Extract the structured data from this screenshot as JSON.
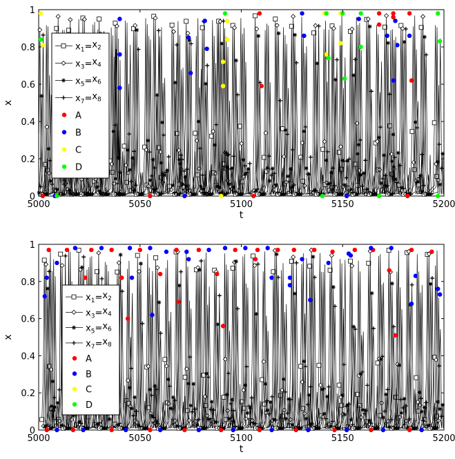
{
  "colors": {
    "line": "#000000",
    "A": "#ff0000",
    "B": "#0000ff",
    "C": "#ffff00",
    "D": "#00ff00"
  },
  "chart_data": [
    {
      "type": "line",
      "xlabel": "t",
      "ylabel": "x",
      "xlim": [
        5000,
        5200
      ],
      "ylim": [
        0,
        1
      ],
      "xticks": [
        "5000",
        "5050",
        "5100",
        "5150",
        "5200"
      ],
      "yticks": [
        "0",
        "0.2",
        "0.4",
        "0.6",
        "0.8",
        "1"
      ],
      "legend_placement": "upper-left",
      "legend": [
        {
          "base1": "x",
          "sub1": "1",
          "sep": "=",
          "base2": "x",
          "sub2": "2",
          "marker": "square"
        },
        {
          "base1": "x",
          "sub1": "3",
          "sep": "=",
          "base2": "x",
          "sub2": "4",
          "marker": "diamond"
        },
        {
          "base1": "x",
          "sub1": "5",
          "sep": "=",
          "base2": "x",
          "sub2": "6",
          "marker": "star"
        },
        {
          "base1": "x",
          "sub1": "7",
          "sep": "=",
          "base2": "x",
          "sub2": "8",
          "marker": "plus"
        },
        {
          "label": "A",
          "marker": "dot",
          "color": "A"
        },
        {
          "label": "B",
          "marker": "dot",
          "color": "B"
        },
        {
          "label": "C",
          "marker": "dot",
          "color": "C"
        },
        {
          "label": "D",
          "marker": "dot",
          "color": "D"
        }
      ],
      "peak_times": [
        5001,
        5005,
        5010,
        5013,
        5016,
        5021,
        5023,
        5028,
        5031,
        5037,
        5039,
        5044,
        5048,
        5054,
        5058,
        5061,
        5067,
        5070,
        5074,
        5079,
        5082,
        5087,
        5090,
        5093,
        5097,
        5101,
        5108,
        5113,
        5118,
        5122,
        5126,
        5131,
        5137,
        5142,
        5146,
        5150,
        5155,
        5158,
        5163,
        5168,
        5172,
        5175,
        5180,
        5186,
        5190,
        5197
      ],
      "event_points": [
        {
          "set": "A",
          "x": 5109,
          "y": 0.98
        },
        {
          "set": "A",
          "x": 5110,
          "y": 0.59
        },
        {
          "set": "A",
          "x": 5168,
          "y": 0.98
        },
        {
          "set": "A",
          "x": 5168,
          "y": 0.92
        },
        {
          "set": "A",
          "x": 5175,
          "y": 0.98
        },
        {
          "set": "A",
          "x": 5175,
          "y": 0.96
        },
        {
          "set": "A",
          "x": 5183,
          "y": 0.98
        },
        {
          "set": "A",
          "x": 5184,
          "y": 0.62
        },
        {
          "set": "B",
          "x": 5040,
          "y": 0.95
        },
        {
          "set": "B",
          "x": 5040,
          "y": 0.76
        },
        {
          "set": "B",
          "x": 5040,
          "y": 0.58
        },
        {
          "set": "B",
          "x": 5074,
          "y": 0.85
        },
        {
          "set": "B",
          "x": 5075,
          "y": 0.66
        },
        {
          "set": "B",
          "x": 5082,
          "y": 0.94
        },
        {
          "set": "B",
          "x": 5083,
          "y": 0.79
        },
        {
          "set": "B",
          "x": 5130,
          "y": 0.98
        },
        {
          "set": "B",
          "x": 5131,
          "y": 0.86
        },
        {
          "set": "B",
          "x": 5158,
          "y": 0.95
        },
        {
          "set": "B",
          "x": 5172,
          "y": 0.86
        },
        {
          "set": "B",
          "x": 5176,
          "y": 0.94
        },
        {
          "set": "B",
          "x": 5177,
          "y": 0.81
        },
        {
          "set": "B",
          "x": 5175,
          "y": 0.62
        },
        {
          "set": "B",
          "x": 5183,
          "y": 0.86
        },
        {
          "set": "C",
          "x": 5001,
          "y": 0.98
        },
        {
          "set": "C",
          "x": 5002,
          "y": 0.81
        },
        {
          "set": "C",
          "x": 5091,
          "y": 0.72
        },
        {
          "set": "C",
          "x": 5091,
          "y": 0.59
        },
        {
          "set": "C",
          "x": 5093,
          "y": 0.94
        },
        {
          "set": "C",
          "x": 5093,
          "y": 0.84
        },
        {
          "set": "C",
          "x": 5141,
          "y": 0.98
        },
        {
          "set": "C",
          "x": 5142,
          "y": 0.76
        },
        {
          "set": "C",
          "x": 5149,
          "y": 0.98
        },
        {
          "set": "C",
          "x": 5149,
          "y": 0.82
        },
        {
          "set": "D",
          "x": 5001,
          "y": 0.84
        },
        {
          "set": "D",
          "x": 5092,
          "y": 0.98
        },
        {
          "set": "D",
          "x": 5142,
          "y": 0.98
        },
        {
          "set": "D",
          "x": 5143,
          "y": 0.74
        },
        {
          "set": "D",
          "x": 5150,
          "y": 0.98
        },
        {
          "set": "D",
          "x": 5151,
          "y": 0.63
        },
        {
          "set": "D",
          "x": 5159,
          "y": 0.98
        },
        {
          "set": "D",
          "x": 5159,
          "y": 0.8
        },
        {
          "set": "D",
          "x": 5197,
          "y": 0.98
        },
        {
          "set": "D",
          "x": 5198,
          "y": 0.83
        },
        {
          "set": "A",
          "x": 5002,
          "y": 0
        },
        {
          "set": "B",
          "x": 5008,
          "y": 0
        },
        {
          "set": "D",
          "x": 5009,
          "y": 0
        },
        {
          "set": "A",
          "x": 5055,
          "y": 0
        },
        {
          "set": "B",
          "x": 5072,
          "y": 0
        },
        {
          "set": "C",
          "x": 5090,
          "y": 0
        },
        {
          "set": "A",
          "x": 5106,
          "y": 0
        },
        {
          "set": "D",
          "x": 5140,
          "y": 0
        },
        {
          "set": "B",
          "x": 5152,
          "y": 0
        },
        {
          "set": "D",
          "x": 5168,
          "y": 0
        },
        {
          "set": "A",
          "x": 5182,
          "y": 0
        },
        {
          "set": "D",
          "x": 5197,
          "y": 0
        }
      ]
    },
    {
      "type": "line",
      "xlabel": "t",
      "ylabel": "x",
      "xlim": [
        5000,
        5200
      ],
      "ylim": [
        0,
        1
      ],
      "xticks": [
        "5000",
        "5050",
        "5100",
        "5150",
        "5200"
      ],
      "yticks": [
        "0",
        "0.2",
        "0.4",
        "0.6",
        "0.8",
        "1"
      ],
      "legend_placement": "left",
      "legend": [
        {
          "base1": "x",
          "sub1": "1",
          "sep": "=",
          "base2": "x",
          "sub2": "2",
          "marker": "square"
        },
        {
          "base1": "x",
          "sub1": "3",
          "sep": "=",
          "base2": "x",
          "sub2": "4",
          "marker": "diamond"
        },
        {
          "base1": "x",
          "sub1": "5",
          "sep": "=",
          "base2": "x",
          "sub2": "6",
          "marker": "star"
        },
        {
          "base1": "x",
          "sub1": "7",
          "sep": "=",
          "base2": "x",
          "sub2": "8",
          "marker": "plus"
        },
        {
          "label": "A",
          "marker": "dot",
          "color": "A"
        },
        {
          "label": "B",
          "marker": "dot",
          "color": "B"
        },
        {
          "label": "C",
          "marker": "dot",
          "color": "C"
        },
        {
          "label": "D",
          "marker": "dot",
          "color": "D"
        }
      ],
      "peak_times": [
        5004,
        5007,
        5012,
        5016,
        5021,
        5025,
        5030,
        5034,
        5040,
        5045,
        5050,
        5055,
        5059,
        5064,
        5069,
        5074,
        5079,
        5083,
        5088,
        5093,
        5097,
        5102,
        5107,
        5112,
        5117,
        5121,
        5126,
        5131,
        5135,
        5140,
        5145,
        5150,
        5155,
        5159,
        5164,
        5169,
        5174,
        5178,
        5183,
        5188,
        5193,
        5197
      ],
      "event_points": [
        {
          "set": "A",
          "x": 5005,
          "y": 0.97
        },
        {
          "set": "A",
          "x": 5014,
          "y": 0.97
        },
        {
          "set": "A",
          "x": 5026,
          "y": 0.97
        },
        {
          "set": "A",
          "x": 5023,
          "y": 0.82
        },
        {
          "set": "A",
          "x": 5036,
          "y": 0.97
        },
        {
          "set": "A",
          "x": 5041,
          "y": 0.82
        },
        {
          "set": "A",
          "x": 5044,
          "y": 0.6
        },
        {
          "set": "A",
          "x": 5050,
          "y": 0.97
        },
        {
          "set": "A",
          "x": 5060,
          "y": 0.84
        },
        {
          "set": "A",
          "x": 5068,
          "y": 0.97
        },
        {
          "set": "A",
          "x": 5069,
          "y": 0.69
        },
        {
          "set": "A",
          "x": 5079,
          "y": 0.97
        },
        {
          "set": "A",
          "x": 5088,
          "y": 0.84
        },
        {
          "set": "A",
          "x": 5091,
          "y": 0.56
        },
        {
          "set": "A",
          "x": 5097,
          "y": 0.97
        },
        {
          "set": "A",
          "x": 5108,
          "y": 0.97
        },
        {
          "set": "A",
          "x": 5107,
          "y": 0.92
        },
        {
          "set": "A",
          "x": 5118,
          "y": 0.97
        },
        {
          "set": "A",
          "x": 5126,
          "y": 0.97
        },
        {
          "set": "A",
          "x": 5136,
          "y": 0.97
        },
        {
          "set": "A",
          "x": 5145,
          "y": 0.96
        },
        {
          "set": "A",
          "x": 5156,
          "y": 0.97
        },
        {
          "set": "A",
          "x": 5165,
          "y": 0.97
        },
        {
          "set": "A",
          "x": 5173,
          "y": 0.86
        },
        {
          "set": "A",
          "x": 5176,
          "y": 0.51
        },
        {
          "set": "A",
          "x": 5184,
          "y": 0.97
        },
        {
          "set": "A",
          "x": 5194,
          "y": 0.96
        },
        {
          "set": "B",
          "x": 5003,
          "y": 0.72
        },
        {
          "set": "B",
          "x": 5004,
          "y": 0.82
        },
        {
          "set": "B",
          "x": 5009,
          "y": 0.9
        },
        {
          "set": "B",
          "x": 5018,
          "y": 0.98
        },
        {
          "set": "B",
          "x": 5031,
          "y": 0.98
        },
        {
          "set": "B",
          "x": 5045,
          "y": 0.98
        },
        {
          "set": "B",
          "x": 5046,
          "y": 0.82
        },
        {
          "set": "B",
          "x": 5055,
          "y": 0.98
        },
        {
          "set": "B",
          "x": 5056,
          "y": 0.62
        },
        {
          "set": "B",
          "x": 5063,
          "y": 0.96
        },
        {
          "set": "B",
          "x": 5073,
          "y": 0.96
        },
        {
          "set": "B",
          "x": 5074,
          "y": 0.92
        },
        {
          "set": "B",
          "x": 5084,
          "y": 0.97
        },
        {
          "set": "B",
          "x": 5092,
          "y": 0.98
        },
        {
          "set": "B",
          "x": 5102,
          "y": 0.98
        },
        {
          "set": "B",
          "x": 5113,
          "y": 0.98
        },
        {
          "set": "B",
          "x": 5115,
          "y": 0.82
        },
        {
          "set": "B",
          "x": 5124,
          "y": 0.82
        },
        {
          "set": "B",
          "x": 5124,
          "y": 0.78
        },
        {
          "set": "B",
          "x": 5130,
          "y": 0.92
        },
        {
          "set": "B",
          "x": 5134,
          "y": 0.7
        },
        {
          "set": "B",
          "x": 5143,
          "y": 0.9
        },
        {
          "set": "B",
          "x": 5153,
          "y": 0.95
        },
        {
          "set": "B",
          "x": 5154,
          "y": 0.94
        },
        {
          "set": "B",
          "x": 5164,
          "y": 0.98
        },
        {
          "set": "B",
          "x": 5174,
          "y": 0.98
        },
        {
          "set": "B",
          "x": 5184,
          "y": 0.68
        },
        {
          "set": "B",
          "x": 5186,
          "y": 0.83
        },
        {
          "set": "B",
          "x": 5197,
          "y": 0.76
        },
        {
          "set": "B",
          "x": 5198,
          "y": 0.73
        },
        {
          "set": "A",
          "x": 5004,
          "y": 0
        },
        {
          "set": "B",
          "x": 5009,
          "y": 0
        },
        {
          "set": "A",
          "x": 5017,
          "y": 0
        },
        {
          "set": "B",
          "x": 5022,
          "y": 0
        },
        {
          "set": "A",
          "x": 5036,
          "y": 0
        },
        {
          "set": "B",
          "x": 5043,
          "y": 0
        },
        {
          "set": "A",
          "x": 5055,
          "y": 0
        },
        {
          "set": "B",
          "x": 5060,
          "y": 0
        },
        {
          "set": "A",
          "x": 5072,
          "y": 0
        },
        {
          "set": "B",
          "x": 5079,
          "y": 0
        },
        {
          "set": "A",
          "x": 5090,
          "y": 0
        },
        {
          "set": "B",
          "x": 5096,
          "y": 0
        },
        {
          "set": "A",
          "x": 5109,
          "y": 0
        },
        {
          "set": "B",
          "x": 5115,
          "y": 0
        },
        {
          "set": "A",
          "x": 5127,
          "y": 0
        },
        {
          "set": "B",
          "x": 5133,
          "y": 0
        },
        {
          "set": "A",
          "x": 5146,
          "y": 0
        },
        {
          "set": "B",
          "x": 5152,
          "y": 0
        },
        {
          "set": "A",
          "x": 5164,
          "y": 0
        },
        {
          "set": "B",
          "x": 5170,
          "y": 0
        },
        {
          "set": "A",
          "x": 5183,
          "y": 0
        },
        {
          "set": "B",
          "x": 5189,
          "y": 0
        }
      ]
    }
  ]
}
